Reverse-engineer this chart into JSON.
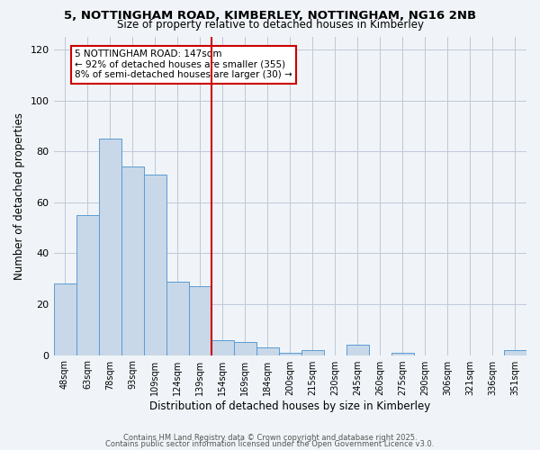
{
  "title_line1": "5, NOTTINGHAM ROAD, KIMBERLEY, NOTTINGHAM, NG16 2NB",
  "title_line2": "Size of property relative to detached houses in Kimberley",
  "xlabel": "Distribution of detached houses by size in Kimberley",
  "ylabel": "Number of detached properties",
  "categories": [
    "48sqm",
    "63sqm",
    "78sqm",
    "93sqm",
    "109sqm",
    "124sqm",
    "139sqm",
    "154sqm",
    "169sqm",
    "184sqm",
    "200sqm",
    "215sqm",
    "230sqm",
    "245sqm",
    "260sqm",
    "275sqm",
    "290sqm",
    "306sqm",
    "321sqm",
    "336sqm",
    "351sqm"
  ],
  "values": [
    28,
    55,
    85,
    74,
    71,
    29,
    27,
    6,
    5,
    3,
    1,
    2,
    0,
    4,
    0,
    1,
    0,
    0,
    0,
    0,
    2
  ],
  "bar_color": "#c8d8e8",
  "bar_edge_color": "#5b9bd5",
  "vline_x_idx": 7,
  "vline_color": "#cc0000",
  "annotation_title": "5 NOTTINGHAM ROAD: 147sqm",
  "annotation_line2": "← 92% of detached houses are smaller (355)",
  "annotation_line3": "8% of semi-detached houses are larger (30) →",
  "annotation_box_color": "#ffffff",
  "annotation_box_edge": "#cc0000",
  "ylim": [
    0,
    125
  ],
  "yticks": [
    0,
    20,
    40,
    60,
    80,
    100,
    120
  ],
  "grid_color": "#c0c8d8",
  "bg_color": "#f0f4f8",
  "footer_line1": "Contains HM Land Registry data © Crown copyright and database right 2025.",
  "footer_line2": "Contains public sector information licensed under the Open Government Licence v3.0."
}
